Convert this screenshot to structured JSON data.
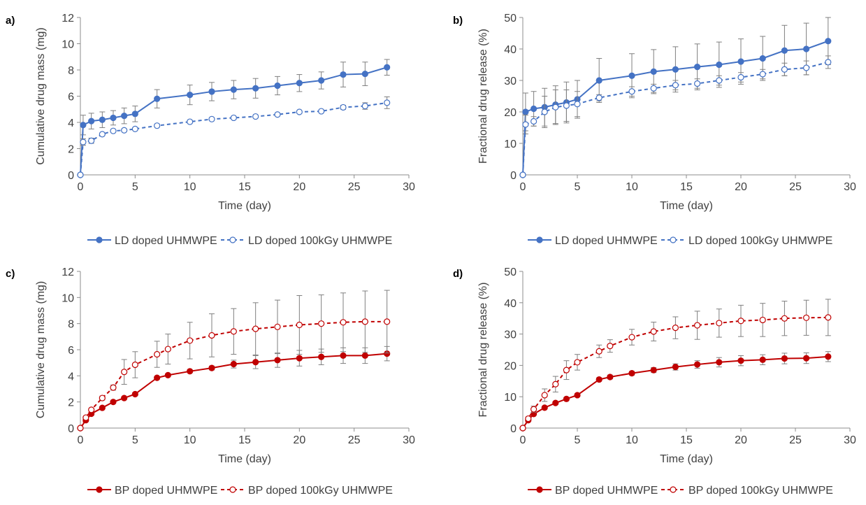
{
  "chart_data": [
    {
      "panel_label": "a)",
      "type": "line",
      "xlabel": "Time (day)",
      "ylabel": "Cumulative drug mass (mg)",
      "xlim": [
        0,
        30
      ],
      "ylim": [
        0,
        12
      ],
      "xticks": [
        0,
        5,
        10,
        15,
        20,
        25,
        30
      ],
      "yticks": [
        0,
        2,
        4,
        6,
        8,
        10,
        12
      ],
      "grid": false,
      "legend_position": "bottom",
      "series": [
        {
          "name": "LD doped UHMWPE",
          "color": "#4472C4",
          "line": "solid",
          "marker": "filled-circle",
          "x": [
            0,
            0.25,
            1,
            2,
            3,
            4,
            5,
            7,
            10,
            12,
            14,
            16,
            18,
            20,
            22,
            24,
            26,
            28
          ],
          "y": [
            0,
            3.8,
            4.1,
            4.2,
            4.35,
            4.5,
            4.65,
            5.8,
            6.1,
            6.35,
            6.5,
            6.6,
            6.8,
            7.0,
            7.2,
            7.65,
            7.7,
            8.2
          ],
          "err": [
            0,
            0.75,
            0.6,
            0.6,
            0.55,
            0.6,
            0.6,
            0.7,
            0.75,
            0.7,
            0.7,
            0.75,
            0.7,
            0.65,
            0.65,
            0.95,
            0.9,
            0.6
          ]
        },
        {
          "name": "LD doped 100kGy UHMWPE",
          "color": "#4472C4",
          "line": "dashed",
          "marker": "open-circle",
          "x": [
            0,
            0.25,
            1,
            2,
            3,
            4,
            5,
            7,
            10,
            12,
            14,
            16,
            18,
            20,
            22,
            24,
            26,
            28
          ],
          "y": [
            0,
            2.5,
            2.6,
            3.1,
            3.35,
            3.4,
            3.5,
            3.75,
            4.05,
            4.25,
            4.35,
            4.45,
            4.6,
            4.8,
            4.85,
            5.15,
            5.25,
            5.5
          ],
          "err": [
            0,
            0.25,
            0.2,
            0.1,
            0.1,
            0.1,
            0.1,
            0.1,
            0.1,
            0.1,
            0.1,
            0.1,
            0.1,
            0.1,
            0.1,
            0.15,
            0.25,
            0.45
          ]
        }
      ]
    },
    {
      "panel_label": "b)",
      "type": "line",
      "xlabel": "Time (day)",
      "ylabel": "Fractional drug release (%)",
      "xlim": [
        0,
        30
      ],
      "ylim": [
        0,
        50
      ],
      "xticks": [
        0,
        5,
        10,
        15,
        20,
        25,
        30
      ],
      "yticks": [
        0,
        10,
        20,
        30,
        40,
        50
      ],
      "grid": false,
      "legend_position": "bottom",
      "series": [
        {
          "name": "LD doped UHMWPE",
          "color": "#4472C4",
          "line": "solid",
          "marker": "filled-circle",
          "x": [
            0,
            0.25,
            1,
            2,
            3,
            4,
            5,
            7,
            10,
            12,
            14,
            16,
            18,
            20,
            22,
            24,
            26,
            28
          ],
          "y": [
            0,
            20,
            21,
            21.5,
            22.3,
            23,
            24,
            30,
            31.5,
            32.8,
            33.5,
            34.3,
            35,
            36,
            37,
            39.5,
            40,
            42.5
          ],
          "err": [
            0,
            6,
            5.5,
            6,
            6,
            6.5,
            6,
            7,
            7,
            7,
            7.2,
            7.3,
            7.2,
            7.2,
            7,
            8,
            8.2,
            7.5
          ]
        },
        {
          "name": "LD doped 100kGy UHMWPE",
          "color": "#4472C4",
          "line": "dashed",
          "marker": "open-circle",
          "x": [
            0,
            0.25,
            1,
            2,
            3,
            4,
            5,
            7,
            10,
            12,
            14,
            16,
            18,
            20,
            22,
            24,
            26,
            28
          ],
          "y": [
            0,
            16,
            17,
            20,
            21.5,
            22,
            22.5,
            24.5,
            26.5,
            27.5,
            28.5,
            29,
            30,
            31,
            32,
            33.5,
            34,
            35.8
          ],
          "err": [
            0,
            3,
            1.5,
            5,
            5.5,
            5,
            4,
            1,
            1.5,
            1.3,
            1.5,
            1.5,
            1.5,
            1.5,
            1.5,
            2,
            2.2,
            2
          ]
        }
      ]
    },
    {
      "panel_label": "c)",
      "type": "line",
      "xlabel": "Time (day)",
      "ylabel": "Cumulative drug mass (mg)",
      "xlim": [
        0,
        30
      ],
      "ylim": [
        0,
        12
      ],
      "xticks": [
        0,
        5,
        10,
        15,
        20,
        25,
        30
      ],
      "yticks": [
        0,
        2,
        4,
        6,
        8,
        10,
        12
      ],
      "grid": false,
      "legend_position": "bottom",
      "series": [
        {
          "name": "BP doped UHMWPE",
          "color": "#C00000",
          "line": "solid",
          "marker": "filled-circle",
          "x": [
            0,
            0.5,
            1,
            2,
            3,
            4,
            5,
            7,
            8,
            10,
            12,
            14,
            16,
            18,
            20,
            22,
            24,
            26,
            28
          ],
          "y": [
            0,
            0.6,
            1.1,
            1.55,
            2.0,
            2.3,
            2.6,
            3.85,
            4.05,
            4.35,
            4.6,
            4.9,
            5.05,
            5.2,
            5.35,
            5.45,
            5.55,
            5.55,
            5.7
          ],
          "err": [
            0,
            0.05,
            0.05,
            0.05,
            0.05,
            0.05,
            0.1,
            0.1,
            0.1,
            0.1,
            0.15,
            0.3,
            0.5,
            0.55,
            0.6,
            0.6,
            0.6,
            0.6,
            0.55
          ]
        },
        {
          "name": "BP doped 100kGy UHMWPE",
          "color": "#C00000",
          "line": "dashed",
          "marker": "open-circle",
          "x": [
            0,
            0.5,
            1,
            2,
            3,
            4,
            5,
            7,
            8,
            10,
            12,
            14,
            16,
            18,
            20,
            22,
            24,
            26,
            28
          ],
          "y": [
            0,
            0.8,
            1.4,
            2.3,
            3.1,
            4.3,
            4.85,
            5.65,
            6.05,
            6.7,
            7.1,
            7.4,
            7.6,
            7.75,
            7.9,
            8.0,
            8.1,
            8.15,
            8.15
          ],
          "err": [
            0,
            0.1,
            0.1,
            0.15,
            0.2,
            0.95,
            1.0,
            1.0,
            1.15,
            1.4,
            1.65,
            1.75,
            2.0,
            2.05,
            2.25,
            2.2,
            2.25,
            2.35,
            2.4
          ]
        }
      ]
    },
    {
      "panel_label": "d)",
      "type": "line",
      "xlabel": "Time (day)",
      "ylabel": "Fractional drug release (%)",
      "xlim": [
        0,
        30
      ],
      "ylim": [
        0,
        50
      ],
      "xticks": [
        0,
        5,
        10,
        15,
        20,
        25,
        30
      ],
      "yticks": [
        0,
        10,
        20,
        30,
        40,
        50
      ],
      "grid": false,
      "legend_position": "bottom",
      "series": [
        {
          "name": "BP doped UHMWPE",
          "color": "#C00000",
          "line": "solid",
          "marker": "filled-circle",
          "x": [
            0,
            0.5,
            1,
            2,
            3,
            4,
            5,
            7,
            8,
            10,
            12,
            14,
            16,
            18,
            20,
            22,
            24,
            26,
            28
          ],
          "y": [
            0,
            2.5,
            4.5,
            6.5,
            8,
            9.3,
            10.5,
            15.5,
            16.3,
            17.5,
            18.5,
            19.5,
            20.3,
            21,
            21.5,
            21.8,
            22.2,
            22.3,
            22.8
          ],
          "err": [
            0,
            0.2,
            0.3,
            0.4,
            0.4,
            0.5,
            0.5,
            0.5,
            0.6,
            0.6,
            0.8,
            1,
            1.2,
            1.5,
            1.6,
            1.6,
            1.7,
            1.7,
            1.6
          ]
        },
        {
          "name": "BP doped 100kGy UHMWPE",
          "color": "#C00000",
          "line": "dashed",
          "marker": "open-circle",
          "x": [
            0,
            0.5,
            1,
            2,
            3,
            4,
            5,
            7,
            8,
            10,
            12,
            14,
            16,
            18,
            20,
            22,
            24,
            26,
            28
          ],
          "y": [
            0,
            3,
            6,
            10.5,
            14,
            18.5,
            21,
            24.5,
            26.2,
            29,
            30.8,
            32,
            32.8,
            33.5,
            34.2,
            34.5,
            35,
            35.2,
            35.3
          ],
          "err": [
            0,
            0.5,
            1,
            2,
            2.5,
            3,
            2.5,
            2,
            2,
            2.5,
            3,
            3.5,
            4.5,
            4.5,
            5,
            5.3,
            5.5,
            5.6,
            5.8
          ]
        }
      ]
    }
  ]
}
